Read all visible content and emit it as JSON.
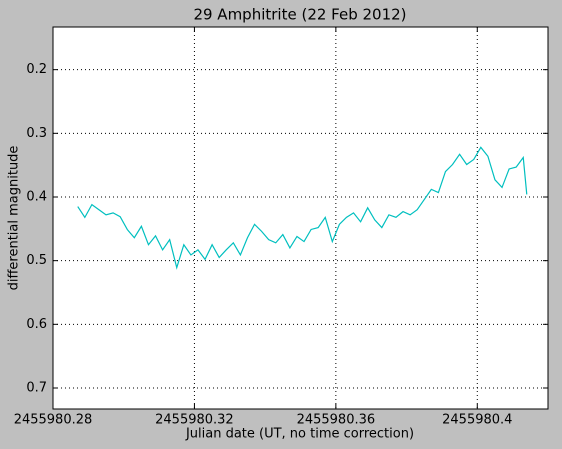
{
  "chart_data": {
    "type": "line",
    "title": "29 Amphitrite (22 Feb 2012)",
    "x_label": "Julian date (UT, no time correction)",
    "y_label": "differential magnitude",
    "x": [
      2455980.287,
      2455980.289,
      2455980.291,
      2455980.293,
      2455980.295,
      2455980.297,
      2455980.299,
      2455980.301,
      2455980.303,
      2455980.305,
      2455980.307,
      2455980.309,
      2455980.311,
      2455980.313,
      2455980.315,
      2455980.317,
      2455980.319,
      2455980.321,
      2455980.323,
      2455980.325,
      2455980.327,
      2455980.329,
      2455980.331,
      2455980.333,
      2455980.335,
      2455980.337,
      2455980.339,
      2455980.341,
      2455980.343,
      2455980.345,
      2455980.347,
      2455980.349,
      2455980.351,
      2455980.353,
      2455980.355,
      2455980.357,
      2455980.359,
      2455980.361,
      2455980.363,
      2455980.365,
      2455980.367,
      2455980.369,
      2455980.371,
      2455980.373,
      2455980.375,
      2455980.377,
      2455980.379,
      2455980.381,
      2455980.383,
      2455980.385,
      2455980.387,
      2455980.389,
      2455980.391,
      2455980.393,
      2455980.395,
      2455980.397,
      2455980.399,
      2455980.401,
      2455980.403,
      2455980.405,
      2455980.407,
      2455980.409,
      2455980.411,
      2455980.413,
      2455980.414
    ],
    "series": [
      {
        "name": "differential magnitude",
        "color": "#00bfbf",
        "values": [
          0.415,
          0.432,
          0.412,
          0.42,
          0.428,
          0.425,
          0.431,
          0.451,
          0.464,
          0.446,
          0.475,
          0.461,
          0.483,
          0.467,
          0.511,
          0.475,
          0.491,
          0.483,
          0.498,
          0.475,
          0.495,
          0.483,
          0.472,
          0.491,
          0.464,
          0.443,
          0.454,
          0.467,
          0.472,
          0.459,
          0.48,
          0.462,
          0.47,
          0.451,
          0.448,
          0.432,
          0.47,
          0.443,
          0.432,
          0.425,
          0.439,
          0.417,
          0.436,
          0.448,
          0.428,
          0.432,
          0.423,
          0.428,
          0.42,
          0.404,
          0.388,
          0.393,
          0.36,
          0.349,
          0.333,
          0.349,
          0.341,
          0.322,
          0.336,
          0.373,
          0.385,
          0.356,
          0.353,
          0.338,
          0.396
        ]
      }
    ],
    "xlim": [
      2455980.28,
      2455980.42
    ],
    "xticks": [
      2455980.28,
      2455980.32,
      2455980.36,
      2455980.4
    ],
    "ylim": [
      0.733,
      0.133
    ],
    "yticks": [
      0.2,
      0.3,
      0.4,
      0.5,
      0.6,
      0.7
    ],
    "grid": true
  }
}
